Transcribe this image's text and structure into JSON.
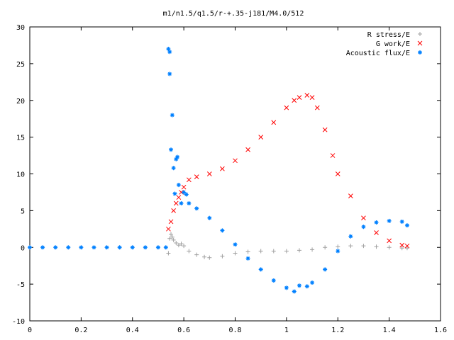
{
  "chart_data": {
    "type": "scatter",
    "title": "m1/n1.5/q1.5/r-+.35-j181/M4.0/512",
    "xlabel": "",
    "ylabel": "",
    "xlim": [
      0,
      1.6
    ],
    "ylim": [
      -10,
      30
    ],
    "xticks": [
      0,
      0.2,
      0.4,
      0.6,
      0.8,
      1,
      1.2,
      1.4,
      1.6
    ],
    "xtick_labels": [
      "0",
      "0.2",
      "0.4",
      "0.6",
      "0.8",
      "1",
      "1.2",
      "1.4",
      "1.6"
    ],
    "yticks": [
      -10,
      -5,
      0,
      5,
      10,
      15,
      20,
      25,
      30
    ],
    "ytick_labels": [
      "-10",
      "-5",
      "0",
      "5",
      "10",
      "15",
      "20",
      "25",
      "30"
    ],
    "grid": false,
    "legend_position": "top-right",
    "series": [
      {
        "name": "R stress/E",
        "marker": "plus",
        "color": "#a0a0a0",
        "x": [
          0.54,
          0.545,
          0.55,
          0.555,
          0.56,
          0.57,
          0.58,
          0.59,
          0.6,
          0.62,
          0.65,
          0.68,
          0.7,
          0.75,
          0.8,
          0.85,
          0.9,
          0.95,
          1.0,
          1.05,
          1.1,
          1.15,
          1.2,
          1.25,
          1.3,
          1.35,
          1.4,
          1.45,
          1.47
        ],
        "y": [
          -0.8,
          1.2,
          1.8,
          1.4,
          1.0,
          0.6,
          0.3,
          0.5,
          0.2,
          -0.5,
          -1.0,
          -1.3,
          -1.4,
          -1.2,
          -0.8,
          -0.6,
          -0.5,
          -0.5,
          -0.5,
          -0.4,
          -0.3,
          0.0,
          0.1,
          0.2,
          0.2,
          0.1,
          0.0,
          -0.1,
          -0.1
        ]
      },
      {
        "name": "G work/E",
        "marker": "cross",
        "color": "#ff0000",
        "x": [
          0.54,
          0.55,
          0.56,
          0.57,
          0.58,
          0.59,
          0.6,
          0.62,
          0.65,
          0.7,
          0.75,
          0.8,
          0.85,
          0.9,
          0.95,
          1.0,
          1.03,
          1.05,
          1.08,
          1.1,
          1.12,
          1.15,
          1.18,
          1.2,
          1.25,
          1.3,
          1.35,
          1.4,
          1.45,
          1.47
        ],
        "y": [
          2.5,
          3.5,
          5.0,
          6.0,
          6.8,
          7.5,
          8.2,
          9.2,
          9.6,
          10.0,
          10.7,
          11.8,
          13.3,
          15.0,
          17.0,
          19.0,
          20.0,
          20.4,
          20.7,
          20.4,
          19.0,
          16.0,
          12.5,
          10.0,
          7.0,
          4.0,
          2.0,
          0.9,
          0.3,
          0.2
        ]
      },
      {
        "name": "Acoustic flux/E",
        "marker": "star",
        "color": "#0080ff",
        "x": [
          0.0,
          0.05,
          0.1,
          0.15,
          0.2,
          0.25,
          0.3,
          0.35,
          0.4,
          0.45,
          0.5,
          0.53,
          0.54,
          0.545,
          0.545,
          0.55,
          0.555,
          0.56,
          0.565,
          0.57,
          0.575,
          0.58,
          0.59,
          0.6,
          0.61,
          0.62,
          0.65,
          0.7,
          0.75,
          0.8,
          0.85,
          0.9,
          0.95,
          1.0,
          1.03,
          1.05,
          1.08,
          1.1,
          1.15,
          1.2,
          1.25,
          1.3,
          1.35,
          1.4,
          1.45,
          1.47
        ],
        "y": [
          0,
          0,
          0,
          0,
          0,
          0,
          0,
          0,
          0,
          0,
          0,
          0,
          27.0,
          26.6,
          23.6,
          13.3,
          18.0,
          10.8,
          7.3,
          12.0,
          12.3,
          8.5,
          6.0,
          7.5,
          7.2,
          6.0,
          5.3,
          4.0,
          2.3,
          0.4,
          -1.5,
          -3.0,
          -4.5,
          -5.5,
          -6.0,
          -5.2,
          -5.3,
          -4.8,
          -3.0,
          -0.5,
          1.5,
          2.8,
          3.4,
          3.6,
          3.5,
          3.0
        ]
      }
    ]
  }
}
